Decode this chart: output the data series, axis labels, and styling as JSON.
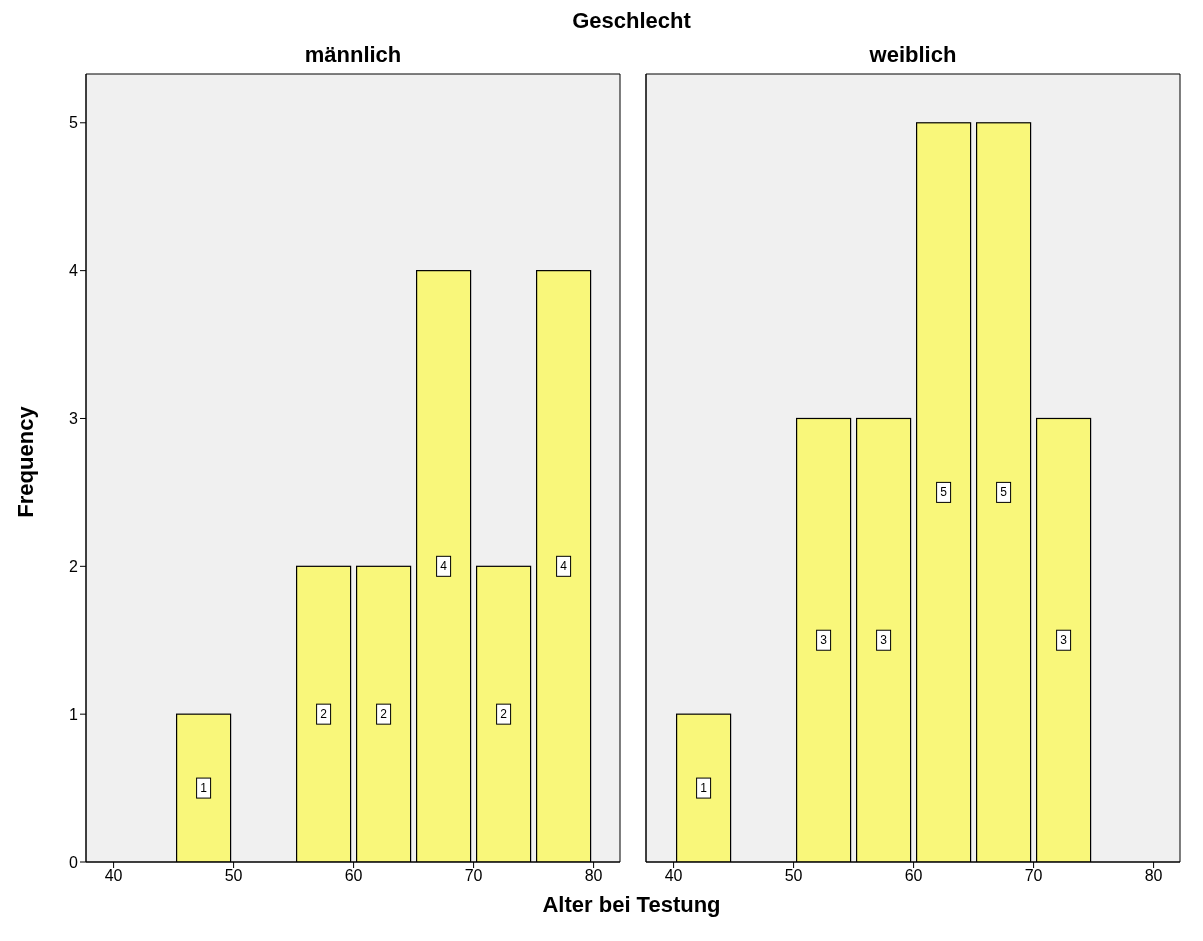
{
  "chart_data": [
    {
      "type": "histogram",
      "title": "männlich",
      "annotations": [
        "Geschlecht"
      ],
      "xlabel": "Alter bei Testung",
      "ylabel": "Frequency",
      "bins": [
        45,
        50,
        55,
        60,
        65,
        70,
        75,
        80
      ],
      "values": [
        1,
        0,
        2,
        2,
        4,
        2,
        4
      ],
      "value_labels": [
        "1",
        null,
        "2",
        "2",
        "4",
        "2",
        "4"
      ],
      "color": "#f9f77a",
      "xlim": [
        37.7,
        82.2
      ],
      "xticks": [
        40,
        50,
        60,
        70,
        80
      ],
      "ylim": [
        0,
        5.33
      ],
      "yticks": [
        0,
        1,
        2,
        3,
        4,
        5
      ]
    },
    {
      "type": "histogram",
      "title": "weiblich",
      "bins": [
        40,
        45,
        50,
        55,
        60,
        65,
        70,
        75
      ],
      "values": [
        1,
        0,
        3,
        3,
        5,
        5,
        3
      ],
      "value_labels": [
        "1",
        null,
        "3",
        "3",
        "5",
        "5",
        "3"
      ],
      "color": "#f9f77a",
      "xlim": [
        37.7,
        82.2
      ],
      "xticks": [
        40,
        50,
        60,
        70,
        80
      ],
      "ylim": [
        0,
        5.33
      ],
      "yticks": [
        0,
        1,
        2,
        3,
        4,
        5
      ],
      "tick_labels": "x"
    }
  ]
}
